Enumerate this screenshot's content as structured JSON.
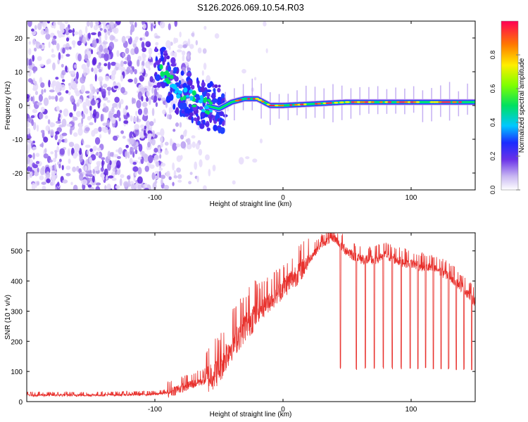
{
  "title": "S126.2026.069.10.54.R03",
  "chart_data": [
    {
      "type": "heatmap",
      "name": "spectrogram",
      "xlabel": "Height of straight line (km)",
      "ylabel": "Frequency (Hz)",
      "xlim": [
        -200,
        150
      ],
      "ylim": [
        -25,
        25
      ],
      "xticks": [
        -100,
        0,
        100
      ],
      "yticks": [
        -20,
        -10,
        0,
        10,
        20
      ],
      "ridge": {
        "description": "high-amplitude tone track",
        "points": [
          [
            -95,
            11
          ],
          [
            -90,
            8
          ],
          [
            -85,
            6
          ],
          [
            -80,
            4
          ],
          [
            -75,
            3
          ],
          [
            -70,
            2
          ],
          [
            -60,
            0
          ],
          [
            -50,
            -1
          ],
          [
            -45,
            0
          ],
          [
            -40,
            1
          ],
          [
            -30,
            2
          ],
          [
            -20,
            2
          ],
          [
            -15,
            1
          ],
          [
            -10,
            0
          ],
          [
            0,
            0
          ],
          [
            50,
            1
          ],
          [
            100,
            1
          ],
          [
            150,
            1
          ]
        ]
      },
      "colorbar": {
        "label": "Normalized spectral amplitude",
        "ticks": [
          0.0,
          0.2,
          0.4,
          0.6,
          0.8
        ],
        "range": [
          0,
          1
        ]
      }
    },
    {
      "type": "line",
      "name": "snr",
      "xlabel": "Height of straight line (km)",
      "ylabel": "SNR (10 * v/v)",
      "xlim": [
        -200,
        150
      ],
      "ylim": [
        0,
        560
      ],
      "xticks": [
        -100,
        0,
        100
      ],
      "yticks": [
        0,
        100,
        200,
        300,
        400,
        500
      ],
      "color": "#e8302c",
      "envelope": [
        [
          -200,
          22
        ],
        [
          -150,
          22
        ],
        [
          -100,
          25
        ],
        [
          -90,
          30
        ],
        [
          -80,
          45
        ],
        [
          -70,
          60
        ],
        [
          -60,
          75
        ],
        [
          -50,
          110
        ],
        [
          -40,
          190
        ],
        [
          -30,
          250
        ],
        [
          -20,
          300
        ],
        [
          -10,
          340
        ],
        [
          0,
          380
        ],
        [
          10,
          420
        ],
        [
          20,
          470
        ],
        [
          30,
          525
        ],
        [
          40,
          545
        ],
        [
          45,
          520
        ],
        [
          50,
          500
        ],
        [
          60,
          475
        ],
        [
          70,
          470
        ],
        [
          80,
          490
        ],
        [
          90,
          470
        ],
        [
          100,
          460
        ],
        [
          110,
          450
        ],
        [
          120,
          440
        ],
        [
          130,
          420
        ],
        [
          140,
          380
        ],
        [
          150,
          335
        ]
      ],
      "dropouts_x": [
        44.5,
        57,
        64,
        71,
        78,
        85,
        92,
        99,
        105,
        111,
        117,
        123,
        129,
        135,
        141,
        147
      ],
      "dropout_level": 110
    }
  ]
}
